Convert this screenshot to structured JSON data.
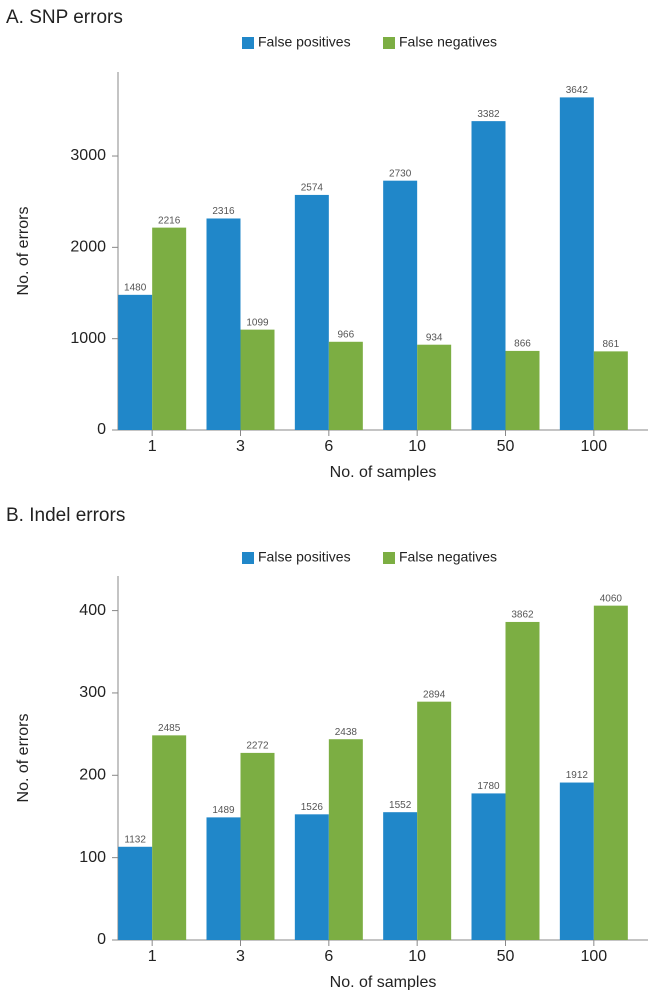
{
  "chart_data": [
    {
      "type": "bar",
      "title": "A. SNP errors",
      "xlabel": "No. of samples",
      "ylabel": "No. of errors",
      "categories": [
        "1",
        "3",
        "6",
        "10",
        "50",
        "100"
      ],
      "series": [
        {
          "name": "False positives",
          "color": "#2087c9",
          "values": [
            1480,
            2316,
            2574,
            2730,
            3382,
            3642
          ]
        },
        {
          "name": "False negatives",
          "color": "#7cae43",
          "values": [
            2216,
            1099,
            966,
            934,
            866,
            861
          ]
        }
      ],
      "ylim": [
        0,
        3920
      ],
      "yticks": [
        0,
        1000,
        2000,
        3000
      ]
    },
    {
      "type": "bar",
      "title": "B. Indel errors",
      "xlabel": "No. of samples",
      "ylabel": "No. of errors",
      "categories": [
        "1",
        "3",
        "6",
        "10",
        "50",
        "100"
      ],
      "series": [
        {
          "name": "False positives",
          "color": "#2087c9",
          "values": [
            113.2,
            148.9,
            152.6,
            155.2,
            178,
            191.2
          ],
          "value_labels": [
            "1132",
            "1489",
            "1526",
            "1552",
            "1780",
            "1912"
          ]
        },
        {
          "name": "False negatives",
          "color": "#7cae43",
          "values": [
            248.5,
            227.2,
            243.8,
            289.4,
            386.2,
            406
          ],
          "value_labels": [
            "2485",
            "2272",
            "2438",
            "2894",
            "3862",
            "4060"
          ]
        }
      ],
      "ylim": [
        0,
        442
      ],
      "yticks": [
        0,
        100,
        200,
        300,
        400
      ]
    }
  ]
}
